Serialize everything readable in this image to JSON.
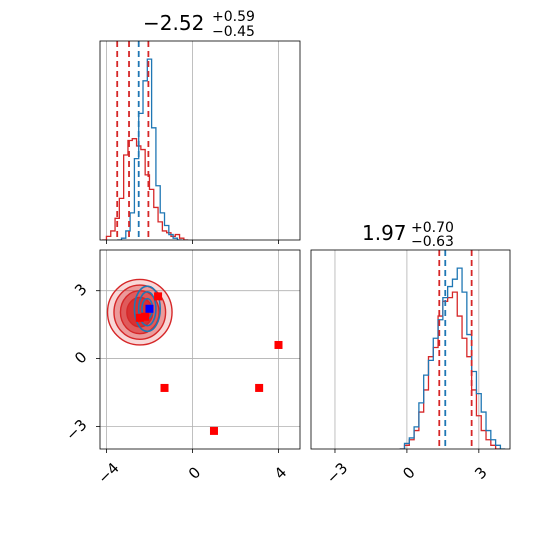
{
  "chart_data": [
    {
      "type": "histogram",
      "panel": "top-left",
      "title": {
        "main": "−2.52",
        "sup": "+0.59",
        "sub": "−0.45"
      },
      "xlim": [
        -4.3,
        5.0
      ],
      "x_ticks": [
        -4,
        0,
        4
      ],
      "grid": true,
      "series": [
        {
          "color": "#d62728",
          "style": "step",
          "x": [
            -4.1,
            -3.9,
            -3.7,
            -3.5,
            -3.3,
            -3.1,
            -2.9,
            -2.7,
            -2.5,
            -2.3,
            -2.1,
            -1.9,
            -1.7,
            -1.5,
            -1.3,
            -1.1,
            -0.9,
            -0.7,
            -0.5,
            -0.3
          ],
          "values": [
            0.0,
            0.02,
            0.05,
            0.12,
            0.23,
            0.47,
            0.55,
            0.56,
            0.52,
            0.5,
            0.36,
            0.28,
            0.18,
            0.1,
            0.05,
            0.04,
            0.02,
            0.03,
            0.01,
            0.0
          ]
        },
        {
          "color": "#1f77b4",
          "style": "step",
          "x": [
            -3.4,
            -3.2,
            -3.0,
            -2.8,
            -2.6,
            -2.4,
            -2.2,
            -2.0,
            -1.8,
            -1.6,
            -1.4,
            -1.2,
            -1.0,
            -0.8,
            -0.6
          ],
          "values": [
            0.0,
            0.01,
            0.05,
            0.15,
            0.45,
            0.7,
            0.88,
            1.0,
            0.62,
            0.3,
            0.15,
            0.08,
            0.03,
            0.01,
            0.0
          ]
        }
      ],
      "quantile_lines": [
        {
          "color": "#d62728",
          "values": [
            -3.5,
            -2.95,
            -2.05
          ]
        },
        {
          "color": "#1f77b4",
          "values": [
            -2.5
          ]
        }
      ]
    },
    {
      "type": "scatter",
      "panel": "bottom-left",
      "xlim": [
        -4.3,
        5.0
      ],
      "ylim": [
        -4.0,
        4.8
      ],
      "x_ticks": [
        -4,
        0,
        4
      ],
      "y_ticks": [
        3,
        0,
        -3
      ],
      "grid": true,
      "contours": [
        {
          "color": "#d62728",
          "center": [
            -2.45,
            2.05
          ],
          "radii": [
            [
              1.5,
              1.45
            ],
            [
              1.2,
              1.2
            ],
            [
              0.9,
              0.95
            ],
            [
              0.6,
              0.65
            ]
          ]
        },
        {
          "color": "#1f77b4",
          "center": [
            -2.1,
            2.2
          ],
          "radii": [
            [
              0.6,
              1.0
            ],
            [
              0.4,
              0.75
            ],
            [
              0.25,
              0.45
            ]
          ]
        }
      ],
      "points": [
        {
          "x": -2.2,
          "y": 1.85,
          "color": "#ff0000"
        },
        {
          "x": -2.45,
          "y": 1.8,
          "color": "#ff0000"
        },
        {
          "x": -1.6,
          "y": 2.75,
          "color": "#ff0000"
        },
        {
          "x": -1.3,
          "y": -1.3,
          "color": "#ff0000"
        },
        {
          "x": 1.0,
          "y": -3.2,
          "color": "#ff0000"
        },
        {
          "x": 3.1,
          "y": -1.3,
          "color": "#ff0000"
        },
        {
          "x": 4.0,
          "y": 0.6,
          "color": "#ff0000"
        },
        {
          "x": -2.0,
          "y": 2.2,
          "color": "#0000ff"
        }
      ]
    },
    {
      "type": "histogram",
      "panel": "bottom-right",
      "title": {
        "main": "1.97",
        "sup": "+0.70",
        "sub": "−0.63"
      },
      "xlim": [
        -4.0,
        4.3
      ],
      "x_ticks": [
        -3,
        0,
        3
      ],
      "grid": true,
      "series": [
        {
          "color": "#d62728",
          "style": "step",
          "x": [
            -0.2,
            0.0,
            0.2,
            0.4,
            0.6,
            0.8,
            1.0,
            1.2,
            1.4,
            1.6,
            1.8,
            2.0,
            2.2,
            2.4,
            2.6,
            2.8,
            3.0,
            3.2,
            3.4,
            3.6,
            3.8
          ],
          "values": [
            0.0,
            0.02,
            0.05,
            0.1,
            0.2,
            0.32,
            0.5,
            0.55,
            0.72,
            0.8,
            0.82,
            0.85,
            0.72,
            0.6,
            0.5,
            0.32,
            0.18,
            0.1,
            0.05,
            0.02,
            0.0
          ]
        },
        {
          "color": "#1f77b4",
          "style": "step",
          "x": [
            -0.2,
            0.0,
            0.2,
            0.4,
            0.6,
            0.8,
            1.0,
            1.2,
            1.4,
            1.6,
            1.8,
            2.0,
            2.2,
            2.4,
            2.6,
            2.8,
            3.0,
            3.2,
            3.4,
            3.6,
            3.8,
            4.0
          ],
          "values": [
            0.0,
            0.03,
            0.06,
            0.12,
            0.25,
            0.4,
            0.48,
            0.6,
            0.7,
            0.82,
            0.88,
            0.92,
            0.98,
            0.85,
            0.62,
            0.42,
            0.3,
            0.2,
            0.1,
            0.05,
            0.02,
            0.0
          ]
        }
      ],
      "quantile_lines": [
        {
          "color": "#d62728",
          "values": [
            1.35,
            2.7
          ]
        },
        {
          "color": "#1f77b4",
          "values": [
            1.6
          ]
        }
      ]
    }
  ]
}
